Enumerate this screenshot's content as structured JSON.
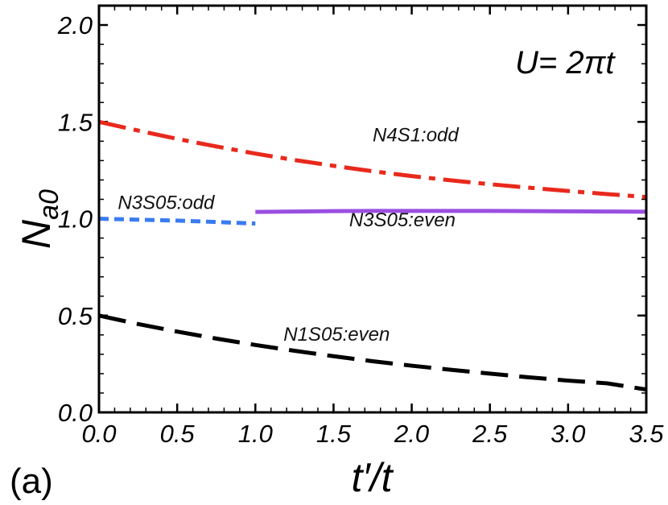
{
  "chart_data": {
    "type": "line",
    "panel_label": "(a)",
    "annotation": "U= 2πt",
    "xlabel": "t′/t",
    "ylabel": "N",
    "ylabel_sub": "a0",
    "xlim": [
      0,
      3.5
    ],
    "ylim": [
      0,
      2.1
    ],
    "x_ticks": [
      0.0,
      0.5,
      1.0,
      1.5,
      2.0,
      2.5,
      3.0,
      3.5
    ],
    "x_tick_labels": [
      "0.0",
      "0.5",
      "1.0",
      "1.5",
      "2.0",
      "2.5",
      "3.0",
      "3.5"
    ],
    "y_ticks": [
      0.0,
      0.5,
      1.0,
      1.5,
      2.0
    ],
    "y_tick_labels": [
      "0.0",
      "0.5",
      "1.0",
      "1.5",
      "2.0"
    ],
    "series": [
      {
        "name": "N4S1:odd",
        "color": "#e8291c",
        "style": "dash-dot",
        "x": [
          0.0,
          0.25,
          0.5,
          0.75,
          1.0,
          1.25,
          1.5,
          1.75,
          2.0,
          2.25,
          2.5,
          2.75,
          3.0,
          3.25,
          3.5
        ],
        "y": [
          1.5,
          1.455,
          1.412,
          1.373,
          1.336,
          1.303,
          1.273,
          1.245,
          1.22,
          1.198,
          1.178,
          1.16,
          1.143,
          1.127,
          1.112
        ]
      },
      {
        "name": "N3S05:odd",
        "color": "#3a7bf0",
        "style": "dashed",
        "x": [
          0.0,
          0.25,
          0.5,
          0.75,
          1.0
        ],
        "y": [
          1.0,
          0.995,
          0.99,
          0.983,
          0.975
        ]
      },
      {
        "name": "N3S05:even",
        "color": "#9a4fe0",
        "style": "solid",
        "x": [
          1.0,
          1.25,
          1.5,
          1.75,
          2.0,
          2.25,
          2.5,
          2.75,
          3.0,
          3.25,
          3.5
        ],
        "y": [
          1.035,
          1.037,
          1.039,
          1.04,
          1.04,
          1.04,
          1.04,
          1.039,
          1.038,
          1.037,
          1.036
        ]
      },
      {
        "name": "N1S05:even",
        "color": "#000000",
        "style": "long-dash",
        "x": [
          0.0,
          0.25,
          0.5,
          0.75,
          1.0,
          1.25,
          1.5,
          1.75,
          2.0,
          2.25,
          2.5,
          2.75,
          3.0,
          3.25,
          3.5
        ],
        "y": [
          0.5,
          0.456,
          0.417,
          0.381,
          0.348,
          0.318,
          0.29,
          0.264,
          0.241,
          0.22,
          0.2,
          0.181,
          0.164,
          0.15,
          0.118
        ]
      }
    ],
    "series_labels": [
      {
        "text": "N4S1:odd",
        "x": 1.75,
        "y": 1.4
      },
      {
        "text": "N3S05:odd",
        "x": 0.12,
        "y": 1.05
      },
      {
        "text": "N3S05:even",
        "x": 1.6,
        "y": 0.96
      },
      {
        "text": "N1S05:even",
        "x": 1.18,
        "y": 0.37
      }
    ]
  }
}
